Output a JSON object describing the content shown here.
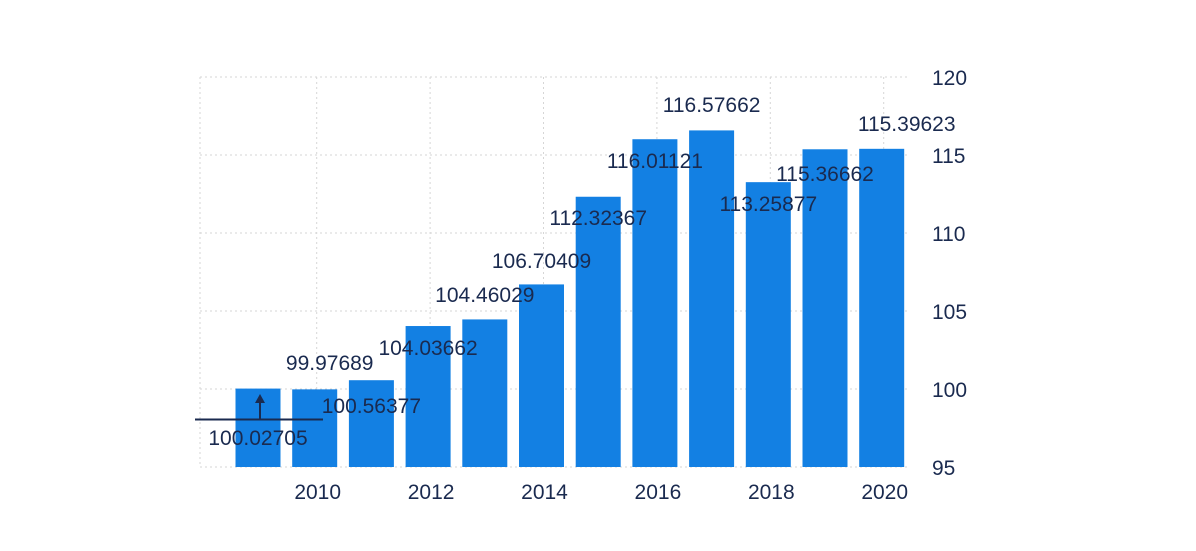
{
  "chart_data": {
    "type": "bar",
    "title": "",
    "xlabel": "",
    "ylabel": "",
    "categories": [
      "2009",
      "2010",
      "2011",
      "2012",
      "2013",
      "2014",
      "2015",
      "2016",
      "2017",
      "2018",
      "2019",
      "2020"
    ],
    "values": [
      100.02705,
      99.97689,
      100.56377,
      104.03662,
      104.46029,
      106.70409,
      112.32367,
      116.01121,
      116.57662,
      113.25877,
      115.36662,
      115.39623
    ],
    "value_labels": [
      "100.02705",
      "99.97689",
      "100.56377",
      "104.03662",
      "104.46029",
      "106.70409",
      "112.32367",
      "116.01121",
      "116.57662",
      "113.25877",
      "115.36662",
      "115.39623"
    ],
    "x_tick_labels": [
      "2010",
      "2012",
      "2014",
      "2016",
      "2018",
      "2020"
    ],
    "x_tick_values": [
      "2010",
      "2012",
      "2014",
      "2016",
      "2018",
      "2020"
    ],
    "y_ticks": [
      "95",
      "100",
      "105",
      "110",
      "115",
      "120"
    ],
    "ylim": [
      95,
      120
    ],
    "y_axis_side": "right",
    "grid": true,
    "bar_color": "#1380e3",
    "text_color": "#1a2a4f",
    "grid_color": "#d6d6d6"
  }
}
